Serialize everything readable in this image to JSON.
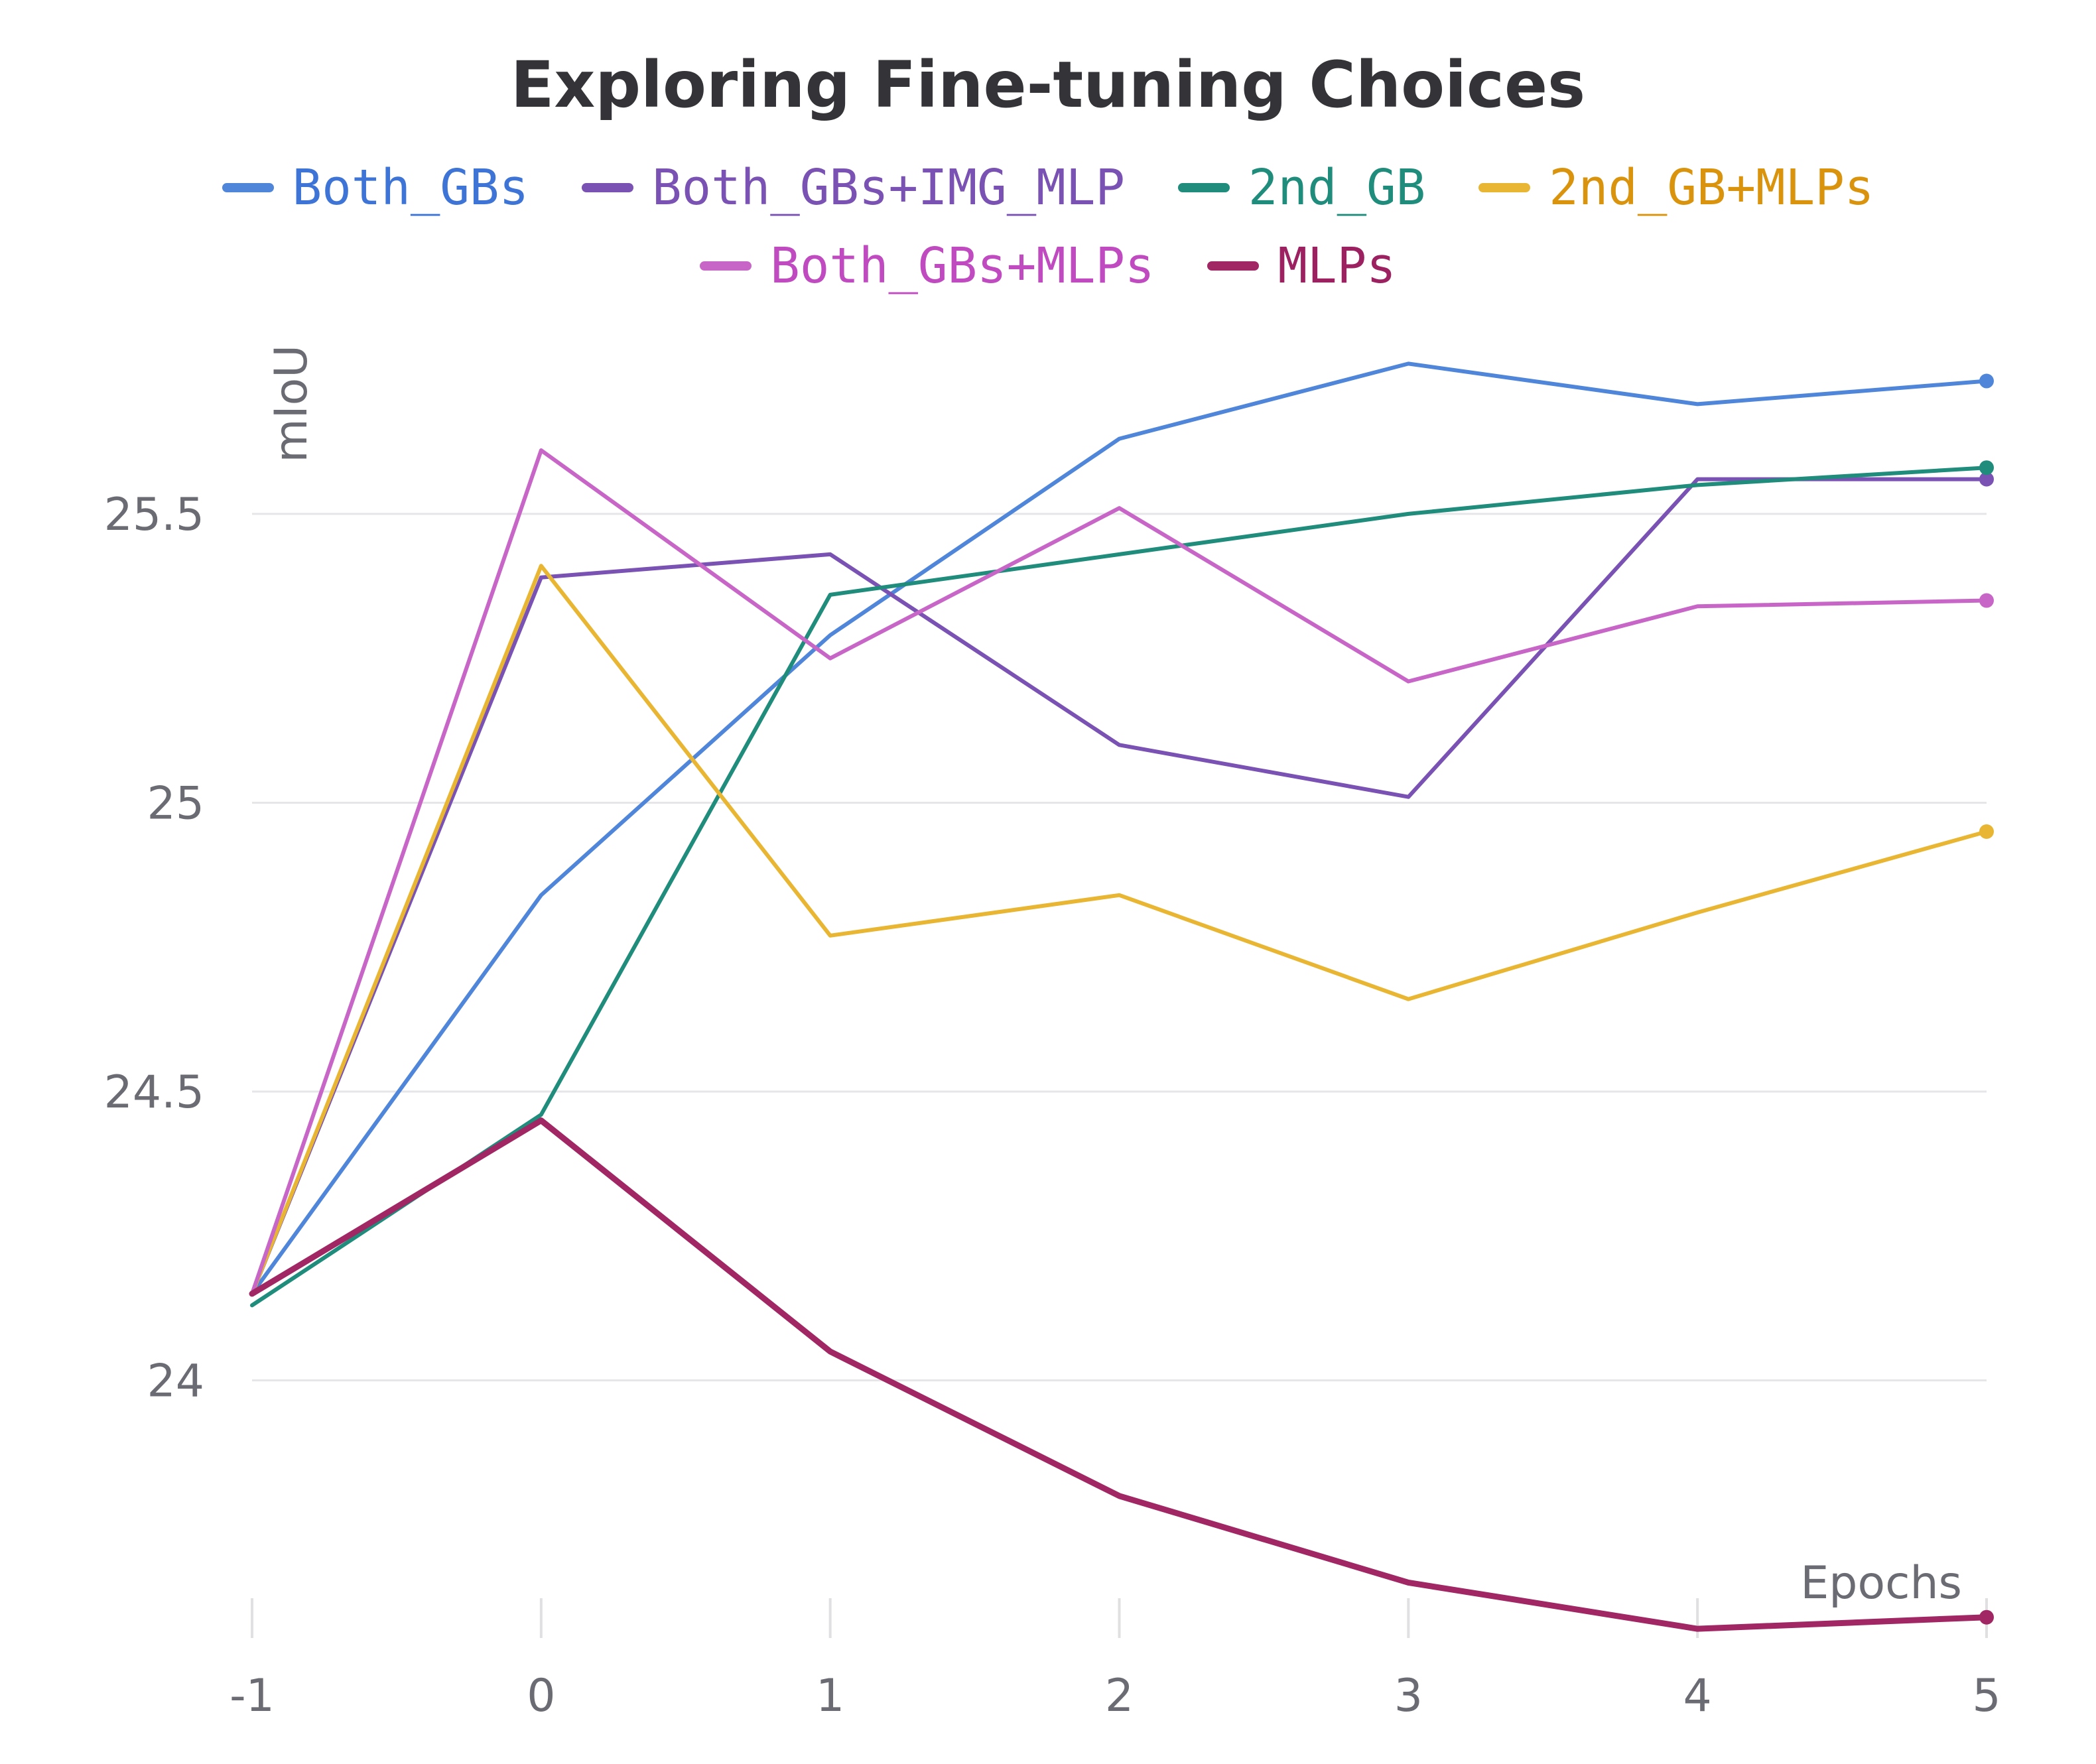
{
  "chart_data": {
    "type": "line",
    "title": "Exploring Fine-tuning Choices",
    "xlabel": "Epochs",
    "ylabel": "mIoU",
    "x": [
      -1,
      0,
      1,
      2,
      3,
      4,
      5
    ],
    "xlim": [
      -1,
      5
    ],
    "ylim": [
      23.6,
      25.85
    ],
    "x_ticks": [
      "-1",
      "0",
      "1",
      "2",
      "3",
      "4",
      "5"
    ],
    "y_ticks": [
      "24",
      "24.5",
      "25",
      "25.5"
    ],
    "grid": "horizontal",
    "legend_position": "top",
    "series": [
      {
        "name": "Both_GBs",
        "color": "#4f86d9",
        "values": [
          24.15,
          24.84,
          25.29,
          25.63,
          25.76,
          25.69,
          25.73
        ]
      },
      {
        "name": "Both_GBs+IMG_MLP",
        "color": "#7a52b3",
        "values": [
          24.15,
          25.39,
          25.43,
          25.1,
          25.01,
          25.56,
          25.56
        ]
      },
      {
        "name": "2nd_GB",
        "color": "#1f8c7c",
        "values": [
          24.13,
          24.46,
          25.36,
          25.43,
          25.5,
          25.55,
          25.58
        ]
      },
      {
        "name": "2nd_GB+MLPs",
        "color": "#e8b632",
        "values": [
          24.15,
          25.41,
          24.77,
          24.84,
          24.66,
          24.81,
          24.95
        ]
      },
      {
        "name": "Both_GBs+MLPs",
        "color": "#c866c8",
        "values": [
          24.15,
          25.61,
          25.25,
          25.51,
          25.21,
          25.34,
          25.35
        ]
      },
      {
        "name": "MLPs",
        "color": "#a02763",
        "values": [
          24.15,
          24.45,
          24.05,
          23.8,
          23.65,
          23.57,
          23.59
        ]
      }
    ],
    "legend_label_colors": [
      "#3d74d6",
      "#7a52b3",
      "#1f8c7c",
      "#d9930c",
      "#c04ac0",
      "#9c2161"
    ]
  }
}
